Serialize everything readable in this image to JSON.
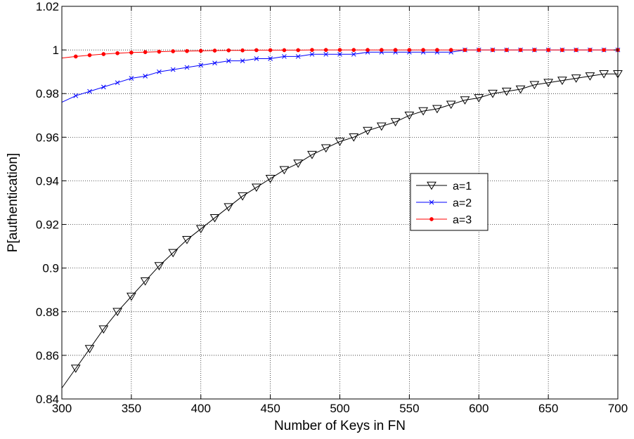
{
  "chart_data": {
    "type": "line",
    "xlabel": "Number of Keys in FN",
    "ylabel": "P[authentication]",
    "xlim": [
      300,
      700
    ],
    "ylim": [
      0.84,
      1.02
    ],
    "xticks": [
      300,
      350,
      400,
      450,
      500,
      550,
      600,
      650,
      700
    ],
    "yticks": [
      0.84,
      0.86,
      0.88,
      0.9,
      0.92,
      0.94,
      0.96,
      0.98,
      1,
      1.02
    ],
    "xtick_labels": [
      "300",
      "350",
      "400",
      "450",
      "500",
      "550",
      "600",
      "650",
      "700"
    ],
    "ytick_labels": [
      "0.84",
      "0.86",
      "0.88",
      "0.9",
      "0.92",
      "0.94",
      "0.96",
      "0.98",
      "1",
      "1.02"
    ],
    "grid": true,
    "legend_position": "center-right",
    "x": [
      300,
      310,
      320,
      330,
      340,
      350,
      360,
      370,
      380,
      390,
      400,
      410,
      420,
      430,
      440,
      450,
      460,
      470,
      480,
      490,
      500,
      510,
      520,
      530,
      540,
      550,
      560,
      570,
      580,
      590,
      600,
      610,
      620,
      630,
      640,
      650,
      660,
      670,
      680,
      690,
      700
    ],
    "series": [
      {
        "name": "a=1",
        "color": "#000000",
        "marker": "triangle-down",
        "values": [
          0.845,
          0.854,
          0.863,
          0.872,
          0.88,
          0.887,
          0.894,
          0.901,
          0.907,
          0.913,
          0.918,
          0.923,
          0.928,
          0.933,
          0.937,
          0.941,
          0.945,
          0.948,
          0.952,
          0.955,
          0.958,
          0.96,
          0.963,
          0.965,
          0.967,
          0.97,
          0.972,
          0.973,
          0.975,
          0.977,
          0.978,
          0.98,
          0.981,
          0.982,
          0.984,
          0.985,
          0.986,
          0.987,
          0.988,
          0.989,
          0.989
        ]
      },
      {
        "name": "a=2",
        "color": "#0000ff",
        "marker": "x",
        "values": [
          0.976,
          0.979,
          0.981,
          0.983,
          0.985,
          0.987,
          0.988,
          0.99,
          0.991,
          0.992,
          0.993,
          0.994,
          0.995,
          0.995,
          0.996,
          0.996,
          0.997,
          0.997,
          0.998,
          0.998,
          0.998,
          0.998,
          0.999,
          0.999,
          0.999,
          0.999,
          0.999,
          0.999,
          0.999,
          1.0,
          1.0,
          1.0,
          1.0,
          1.0,
          1.0,
          1.0,
          1.0,
          1.0,
          1.0,
          1.0,
          1.0
        ]
      },
      {
        "name": "a=3",
        "color": "#ff0000",
        "marker": "dot",
        "values": [
          0.9963,
          0.997,
          0.9976,
          0.9981,
          0.9985,
          0.9988,
          0.999,
          0.9992,
          0.9994,
          0.9995,
          0.9996,
          0.9997,
          0.9998,
          0.9998,
          0.9999,
          0.9999,
          0.9999,
          0.9999,
          1.0,
          1.0,
          1.0,
          1.0,
          1.0,
          1.0,
          1.0,
          1.0,
          1.0,
          1.0,
          1.0,
          1.0,
          1.0,
          1.0,
          1.0,
          1.0,
          1.0,
          1.0,
          1.0,
          1.0,
          1.0,
          1.0,
          1.0
        ]
      }
    ]
  }
}
